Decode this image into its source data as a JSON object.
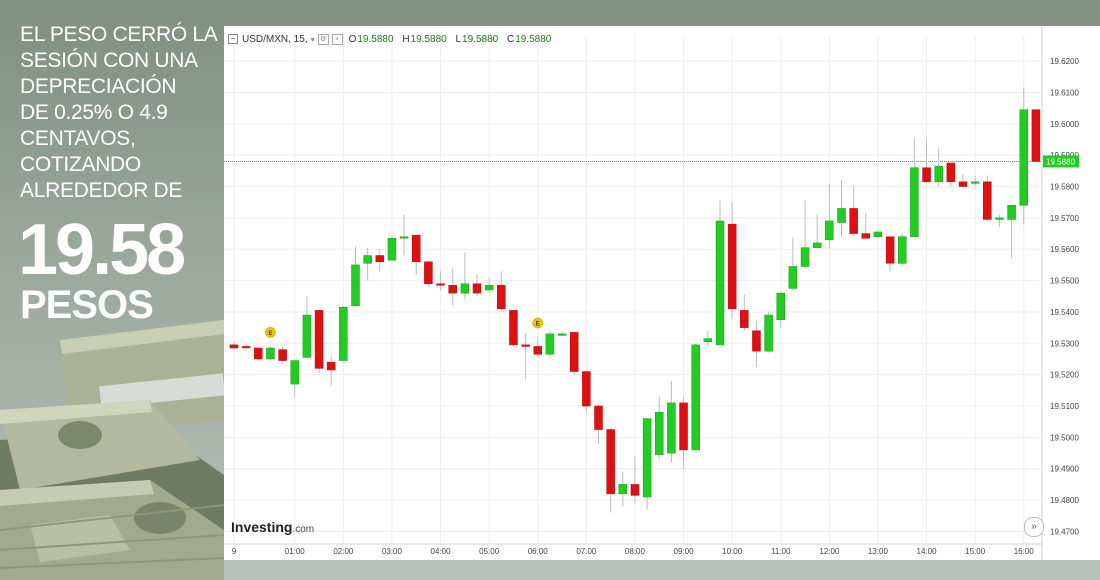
{
  "headline": {
    "lines": [
      "EL PESO CERRÓ LA",
      "SESIÓN CON UNA",
      "DEPRECIACIÓN",
      "DE 0.25% O 4.9",
      "CENTAVOS,",
      "COTIZANDO",
      "ALREDEDOR DE"
    ],
    "big_value": "19.58",
    "big_unit": "PESOS"
  },
  "chart_header": {
    "symbol": "USD/MXN, 15,",
    "open_label": "O",
    "open_value": "19.5880",
    "high_label": "H",
    "high_value": "19.5880",
    "low_label": "L",
    "low_value": "19.5880",
    "close_label": "C",
    "close_value": "19.5880"
  },
  "logo": {
    "main": "Investing",
    "suffix": ".com"
  },
  "colors": {
    "up": "#22cc22",
    "down": "#dd1111",
    "price_line": "#22cc22",
    "grid": "#eeeeee"
  },
  "chart_data": {
    "type": "candlestick",
    "title": "",
    "xlabel": "",
    "ylabel": "",
    "ylim": [
      19.466,
      19.628
    ],
    "y_ticks": [
      "19.4700",
      "19.4800",
      "19.4900",
      "19.5000",
      "19.5100",
      "19.5200",
      "19.5300",
      "19.5400",
      "19.5500",
      "19.5600",
      "19.5700",
      "19.5800",
      "19.5900",
      "19.6000",
      "19.6100",
      "19.6200"
    ],
    "x_ticks": [
      {
        "label": "9",
        "bar": 0
      },
      {
        "label": "01:00",
        "bar": 5
      },
      {
        "label": "02:00",
        "bar": 9
      },
      {
        "label": "03:00",
        "bar": 13
      },
      {
        "label": "04:00",
        "bar": 17
      },
      {
        "label": "05:00",
        "bar": 21
      },
      {
        "label": "06:00",
        "bar": 25
      },
      {
        "label": "07:00",
        "bar": 29
      },
      {
        "label": "08:00",
        "bar": 33
      },
      {
        "label": "09:00",
        "bar": 37
      },
      {
        "label": "10:00",
        "bar": 41
      },
      {
        "label": "11:00",
        "bar": 45
      },
      {
        "label": "12:00",
        "bar": 49
      },
      {
        "label": "13:00",
        "bar": 53
      },
      {
        "label": "14:00",
        "bar": 57
      },
      {
        "label": "15:00",
        "bar": 61
      },
      {
        "label": "16:00",
        "bar": 65
      }
    ],
    "last_price": 19.588,
    "last_price_label": "19.5880",
    "events": [
      {
        "bar": 3,
        "label": "E"
      },
      {
        "bar": 25,
        "label": "E"
      }
    ],
    "candles": [
      {
        "o": 19.5295,
        "h": 19.5305,
        "l": 19.528,
        "c": 19.5285
      },
      {
        "o": 19.529,
        "h": 19.5295,
        "l": 19.5285,
        "c": 19.5288
      },
      {
        "o": 19.5285,
        "h": 19.529,
        "l": 19.5245,
        "c": 19.525
      },
      {
        "o": 19.525,
        "h": 19.529,
        "l": 19.5245,
        "c": 19.5285
      },
      {
        "o": 19.528,
        "h": 19.529,
        "l": 19.5235,
        "c": 19.5245
      },
      {
        "o": 19.517,
        "h": 19.525,
        "l": 19.513,
        "c": 19.5245
      },
      {
        "o": 19.5255,
        "h": 19.545,
        "l": 19.5255,
        "c": 19.539
      },
      {
        "o": 19.5405,
        "h": 19.5405,
        "l": 19.5205,
        "c": 19.522
      },
      {
        "o": 19.524,
        "h": 19.526,
        "l": 19.5165,
        "c": 19.5215
      },
      {
        "o": 19.5245,
        "h": 19.542,
        "l": 19.5245,
        "c": 19.5415
      },
      {
        "o": 19.542,
        "h": 19.561,
        "l": 19.542,
        "c": 19.555
      },
      {
        "o": 19.5555,
        "h": 19.5605,
        "l": 19.55,
        "c": 19.558
      },
      {
        "o": 19.558,
        "h": 19.56,
        "l": 19.553,
        "c": 19.556
      },
      {
        "o": 19.5565,
        "h": 19.564,
        "l": 19.5565,
        "c": 19.5635
      },
      {
        "o": 19.5635,
        "h": 19.571,
        "l": 19.558,
        "c": 19.564
      },
      {
        "o": 19.5645,
        "h": 19.5645,
        "l": 19.552,
        "c": 19.556
      },
      {
        "o": 19.556,
        "h": 19.556,
        "l": 19.548,
        "c": 19.549
      },
      {
        "o": 19.549,
        "h": 19.553,
        "l": 19.547,
        "c": 19.5485
      },
      {
        "o": 19.5485,
        "h": 19.554,
        "l": 19.542,
        "c": 19.546
      },
      {
        "o": 19.546,
        "h": 19.559,
        "l": 19.544,
        "c": 19.549
      },
      {
        "o": 19.549,
        "h": 19.552,
        "l": 19.545,
        "c": 19.546
      },
      {
        "o": 19.547,
        "h": 19.551,
        "l": 19.546,
        "c": 19.5485
      },
      {
        "o": 19.5485,
        "h": 19.553,
        "l": 19.54,
        "c": 19.541
      },
      {
        "o": 19.5405,
        "h": 19.5405,
        "l": 19.529,
        "c": 19.5295
      },
      {
        "o": 19.5295,
        "h": 19.533,
        "l": 19.5185,
        "c": 19.529
      },
      {
        "o": 19.529,
        "h": 19.532,
        "l": 19.526,
        "c": 19.5265
      },
      {
        "o": 19.5265,
        "h": 19.534,
        "l": 19.5255,
        "c": 19.533
      },
      {
        "o": 19.533,
        "h": 19.534,
        "l": 19.5325,
        "c": 19.533
      },
      {
        "o": 19.5335,
        "h": 19.5335,
        "l": 19.52,
        "c": 19.521
      },
      {
        "o": 19.521,
        "h": 19.521,
        "l": 19.508,
        "c": 19.51
      },
      {
        "o": 19.51,
        "h": 19.5105,
        "l": 19.498,
        "c": 19.5025
      },
      {
        "o": 19.5025,
        "h": 19.503,
        "l": 19.476,
        "c": 19.482
      },
      {
        "o": 19.482,
        "h": 19.489,
        "l": 19.478,
        "c": 19.485
      },
      {
        "o": 19.485,
        "h": 19.494,
        "l": 19.479,
        "c": 19.4815
      },
      {
        "o": 19.481,
        "h": 19.506,
        "l": 19.477,
        "c": 19.506
      },
      {
        "o": 19.4945,
        "h": 19.513,
        "l": 19.493,
        "c": 19.508
      },
      {
        "o": 19.495,
        "h": 19.518,
        "l": 19.492,
        "c": 19.511
      },
      {
        "o": 19.511,
        "h": 19.513,
        "l": 19.49,
        "c": 19.496
      },
      {
        "o": 19.496,
        "h": 19.53,
        "l": 19.496,
        "c": 19.5295
      },
      {
        "o": 19.5305,
        "h": 19.534,
        "l": 19.529,
        "c": 19.5315
      },
      {
        "o": 19.5295,
        "h": 19.5755,
        "l": 19.5295,
        "c": 19.569
      },
      {
        "o": 19.568,
        "h": 19.575,
        "l": 19.538,
        "c": 19.541
      },
      {
        "o": 19.5405,
        "h": 19.5455,
        "l": 19.534,
        "c": 19.535
      },
      {
        "o": 19.534,
        "h": 19.537,
        "l": 19.5225,
        "c": 19.5275
      },
      {
        "o": 19.5275,
        "h": 19.54,
        "l": 19.527,
        "c": 19.539
      },
      {
        "o": 19.5375,
        "h": 19.5465,
        "l": 19.535,
        "c": 19.546
      },
      {
        "o": 19.5475,
        "h": 19.564,
        "l": 19.547,
        "c": 19.5545
      },
      {
        "o": 19.5545,
        "h": 19.5755,
        "l": 19.554,
        "c": 19.5605
      },
      {
        "o": 19.5605,
        "h": 19.571,
        "l": 19.5605,
        "c": 19.562
      },
      {
        "o": 19.563,
        "h": 19.581,
        "l": 19.56,
        "c": 19.569
      },
      {
        "o": 19.5685,
        "h": 19.582,
        "l": 19.564,
        "c": 19.573
      },
      {
        "o": 19.573,
        "h": 19.58,
        "l": 19.564,
        "c": 19.565
      },
      {
        "o": 19.565,
        "h": 19.5715,
        "l": 19.5635,
        "c": 19.5635
      },
      {
        "o": 19.564,
        "h": 19.566,
        "l": 19.5635,
        "c": 19.5655
      },
      {
        "o": 19.564,
        "h": 19.564,
        "l": 19.553,
        "c": 19.5555
      },
      {
        "o": 19.5555,
        "h": 19.565,
        "l": 19.5545,
        "c": 19.564
      },
      {
        "o": 19.564,
        "h": 19.5955,
        "l": 19.564,
        "c": 19.586
      },
      {
        "o": 19.586,
        "h": 19.595,
        "l": 19.581,
        "c": 19.5815
      },
      {
        "o": 19.5815,
        "h": 19.5925,
        "l": 19.58,
        "c": 19.5865
      },
      {
        "o": 19.5875,
        "h": 19.5875,
        "l": 19.58,
        "c": 19.5815
      },
      {
        "o": 19.5815,
        "h": 19.584,
        "l": 19.579,
        "c": 19.58
      },
      {
        "o": 19.581,
        "h": 19.5835,
        "l": 19.58,
        "c": 19.5815
      },
      {
        "o": 19.5815,
        "h": 19.5835,
        "l": 19.569,
        "c": 19.5695
      },
      {
        "o": 19.5695,
        "h": 19.571,
        "l": 19.567,
        "c": 19.57
      },
      {
        "o": 19.5695,
        "h": 19.574,
        "l": 19.557,
        "c": 19.574
      },
      {
        "o": 19.574,
        "h": 19.6115,
        "l": 19.568,
        "c": 19.6045
      },
      {
        "o": 19.6045,
        "h": 19.6045,
        "l": 19.588,
        "c": 19.588
      }
    ]
  }
}
